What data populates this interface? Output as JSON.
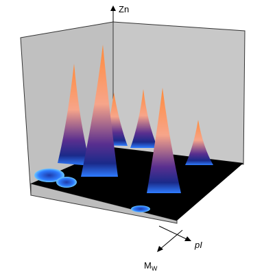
{
  "axes": {
    "z": "Zn",
    "x": "pI",
    "y": "M",
    "y_subscript": "W"
  }
}
